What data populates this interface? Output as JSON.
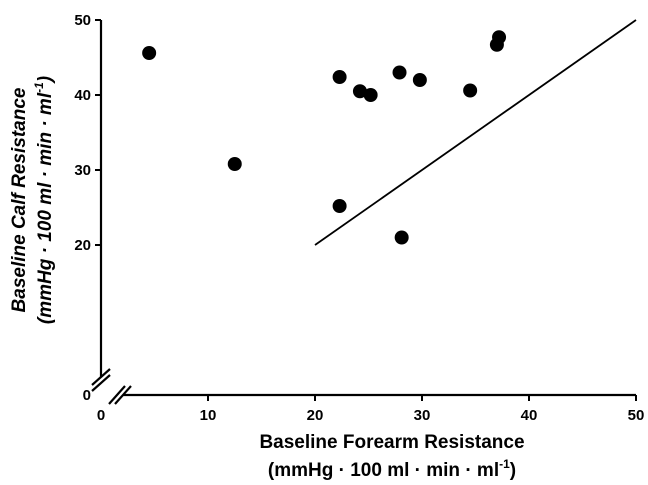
{
  "chart_data": {
    "type": "scatter",
    "xlabel_line1": "Baseline Forearm Resistance",
    "xlabel_line2": "(mmHg · 100 ml · min · ml",
    "xlabel_line2_sup": "-1",
    "xlabel_line2_end": ")",
    "ylabel_line1": "Baseline Calf Resistance",
    "ylabel_line2": "(mmHg · 100 ml · min · ml",
    "ylabel_line2_sup": "-1",
    "ylabel_line2_end": ")",
    "xlim": [
      0,
      50
    ],
    "ylim": [
      0,
      50
    ],
    "axis_break": true,
    "x_ticks": [
      {
        "value": 0,
        "label": "0"
      },
      {
        "value": 10,
        "label": "10"
      },
      {
        "value": 20,
        "label": "20"
      },
      {
        "value": 30,
        "label": "30"
      },
      {
        "value": 40,
        "label": "40"
      },
      {
        "value": 50,
        "label": "50"
      }
    ],
    "y_ticks": [
      {
        "value": 0,
        "label": "0"
      },
      {
        "value": 20,
        "label": "20"
      },
      {
        "value": 30,
        "label": "30"
      },
      {
        "value": 40,
        "label": "40"
      },
      {
        "value": 50,
        "label": "50"
      }
    ],
    "points": [
      {
        "x": 4.5,
        "y": 45.6
      },
      {
        "x": 12.5,
        "y": 30.8
      },
      {
        "x": 22.3,
        "y": 42.4
      },
      {
        "x": 22.3,
        "y": 25.2
      },
      {
        "x": 24.2,
        "y": 40.5
      },
      {
        "x": 25.2,
        "y": 40.0
      },
      {
        "x": 27.9,
        "y": 43.0
      },
      {
        "x": 28.1,
        "y": 21.0
      },
      {
        "x": 29.8,
        "y": 42.0
      },
      {
        "x": 34.5,
        "y": 40.6
      },
      {
        "x": 37.0,
        "y": 46.7
      },
      {
        "x": 37.2,
        "y": 47.7
      }
    ],
    "line": {
      "x": [
        20,
        50
      ],
      "y": [
        20,
        50
      ]
    }
  }
}
